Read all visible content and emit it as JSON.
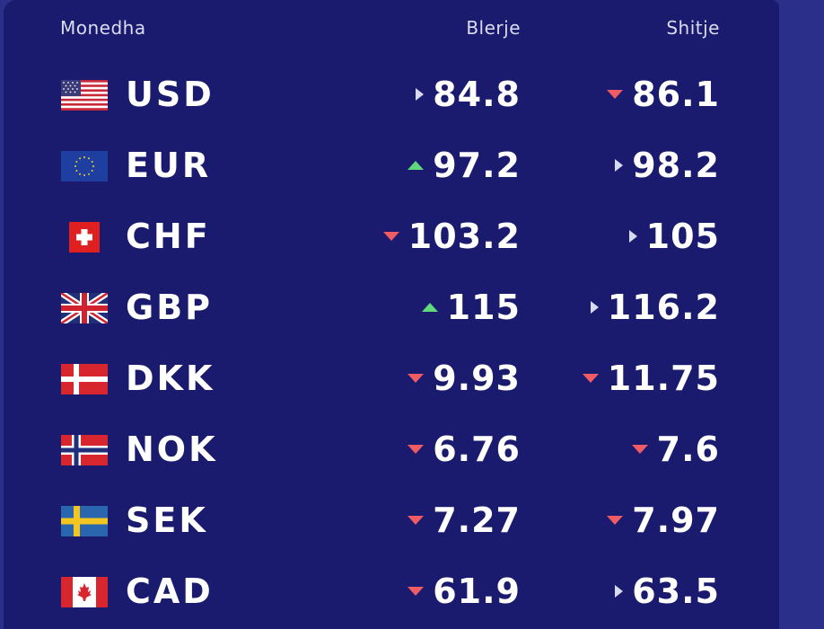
{
  "header": {
    "currency": "Monedha",
    "buy": "Blerje",
    "sell": "Shitje"
  },
  "colors": {
    "background": "#1a1a6e",
    "up": "#5fd97a",
    "down": "#ef5c64",
    "flat": "#d8dbef"
  },
  "rows": [
    {
      "code": "USD",
      "flag_icon": "us-flag-icon",
      "buy": "84.8",
      "buy_trend": "flat",
      "sell": "86.1",
      "sell_trend": "down"
    },
    {
      "code": "EUR",
      "flag_icon": "eu-flag-icon",
      "buy": "97.2",
      "buy_trend": "up",
      "sell": "98.2",
      "sell_trend": "flat"
    },
    {
      "code": "CHF",
      "flag_icon": "ch-flag-icon",
      "buy": "103.2",
      "buy_trend": "down",
      "sell": "105",
      "sell_trend": "flat"
    },
    {
      "code": "GBP",
      "flag_icon": "gb-flag-icon",
      "buy": "115",
      "buy_trend": "up",
      "sell": "116.2",
      "sell_trend": "flat"
    },
    {
      "code": "DKK",
      "flag_icon": "dk-flag-icon",
      "buy": "9.93",
      "buy_trend": "down",
      "sell": "11.75",
      "sell_trend": "down"
    },
    {
      "code": "NOK",
      "flag_icon": "no-flag-icon",
      "buy": "6.76",
      "buy_trend": "down",
      "sell": "7.6",
      "sell_trend": "down"
    },
    {
      "code": "SEK",
      "flag_icon": "se-flag-icon",
      "buy": "7.27",
      "buy_trend": "down",
      "sell": "7.97",
      "sell_trend": "down"
    },
    {
      "code": "CAD",
      "flag_icon": "ca-flag-icon",
      "buy": "61.9",
      "buy_trend": "down",
      "sell": "63.5",
      "sell_trend": "flat"
    }
  ]
}
